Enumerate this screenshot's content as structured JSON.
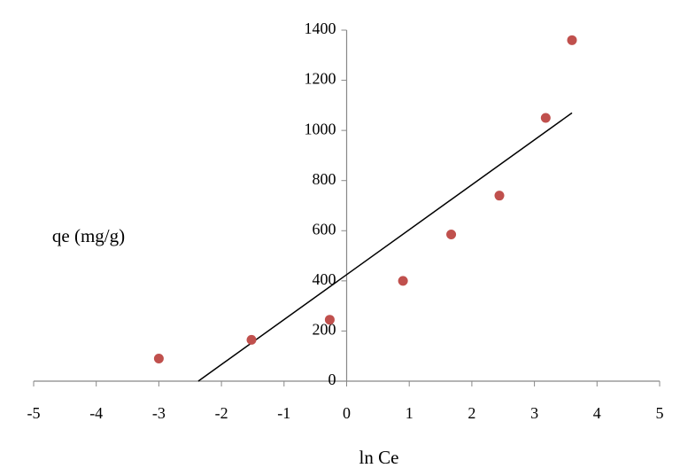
{
  "chart_data": {
    "type": "scatter",
    "x_label": "ln Ce",
    "y_label": "qe (mg/g)",
    "xlim": [
      -5,
      5
    ],
    "xticks": [
      -5,
      -4,
      -3,
      -2,
      -1,
      0,
      1,
      2,
      3,
      4,
      5
    ],
    "ylim": [
      0,
      1400
    ],
    "yticks": [
      0,
      200,
      400,
      600,
      800,
      1000,
      1200,
      1400
    ],
    "series": [
      {
        "color": "#c0504d",
        "x": [
          -3.0,
          -1.52,
          -0.27,
          0.9,
          1.67,
          2.44,
          3.18,
          3.6
        ],
        "values": [
          90,
          165,
          245,
          400,
          585,
          740,
          1050,
          1360
        ]
      }
    ],
    "trendline": {
      "color": "#000000",
      "x": [
        -2.37,
        3.6
      ],
      "values": [
        0,
        1070
      ]
    }
  }
}
